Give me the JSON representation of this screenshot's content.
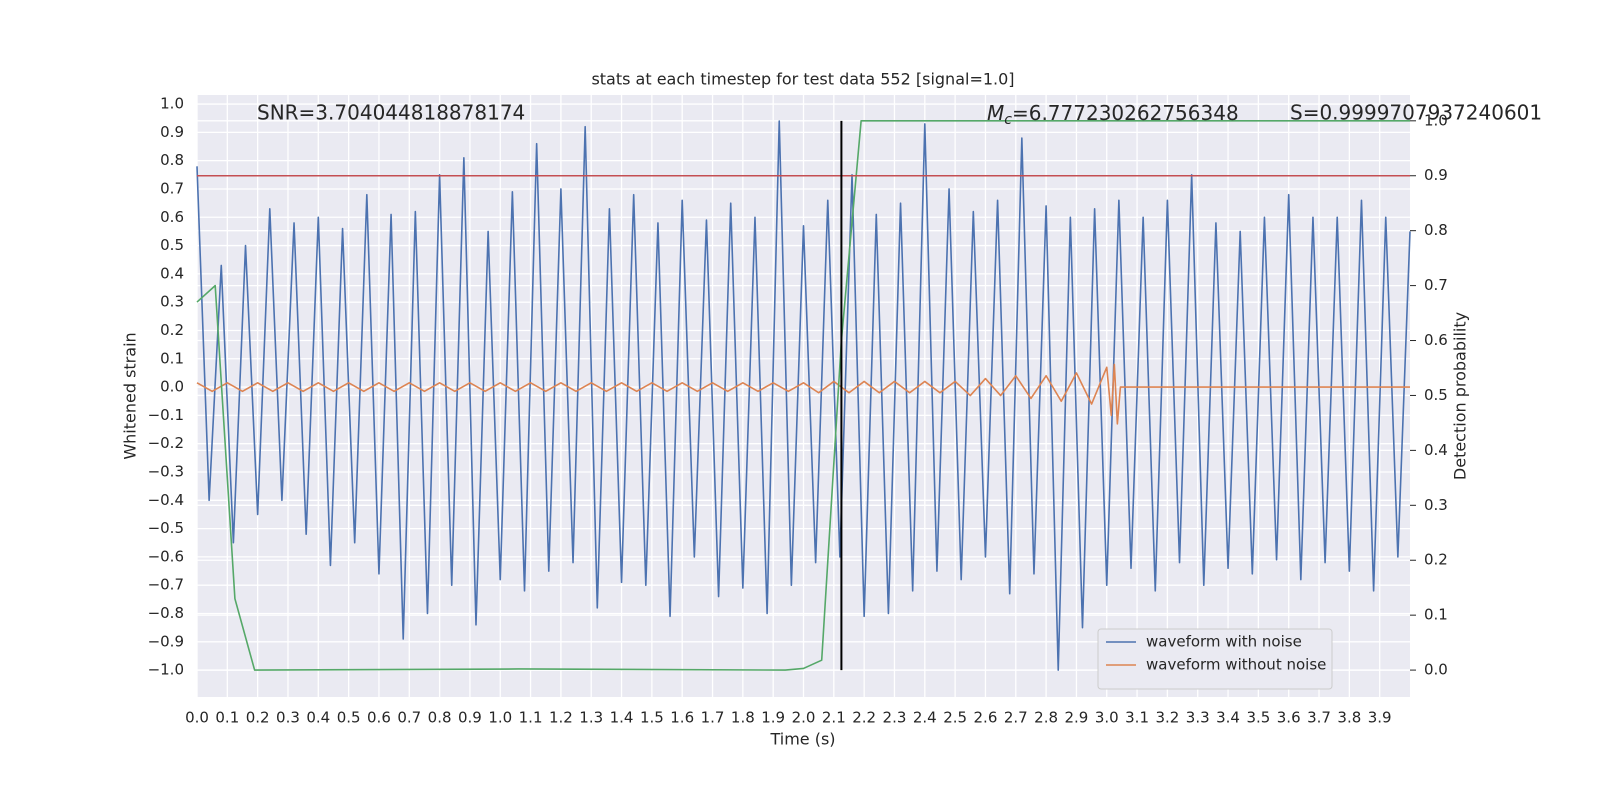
{
  "chart_data": {
    "type": "line",
    "title": "stats at each timestep for test data 552 [signal=1.0]",
    "xlabel": "Time (s)",
    "ylabel": "Whitened strain",
    "y2label": "Detection probability",
    "annotations": {
      "snr": "SNR=3.704044818878174",
      "mc": {
        "symbol": "M",
        "subscript": "c",
        "text": "=6.777230262756348"
      },
      "s": "S=0.9999707937240601"
    },
    "xlim": [
      0,
      4.0
    ],
    "ylim": [
      -1.095,
      1.032
    ],
    "y2lim": [
      -0.049,
      1.047
    ],
    "grid": true,
    "legend": "lower right",
    "xticks": [
      {
        "value": 0,
        "label": "0.0"
      },
      0.1,
      0.2,
      0.3,
      0.4,
      0.5,
      0.6,
      0.7,
      0.8,
      0.9,
      {
        "value": 1,
        "label": "1.0"
      },
      1.1,
      1.2,
      1.3,
      1.4,
      1.5,
      1.6,
      1.7,
      1.8,
      1.9,
      {
        "value": 2,
        "label": "2.0"
      },
      2.1,
      2.2,
      2.3,
      2.4,
      2.5,
      2.6,
      2.7,
      2.8,
      2.9,
      {
        "value": 3,
        "label": "3.0"
      },
      3.1,
      3.2,
      3.3,
      3.4,
      3.5,
      3.6,
      3.7,
      3.8,
      3.9
    ],
    "yticks": [
      {
        "value": 1,
        "label": "1.0"
      },
      0.9,
      0.8,
      0.7,
      0.6,
      0.5,
      0.4,
      0.3,
      0.2,
      0.1,
      {
        "value": 0,
        "label": "0.0"
      },
      {
        "value": -0.1,
        "label": "−0.1"
      },
      {
        "value": -0.2,
        "label": "−0.2"
      },
      {
        "value": -0.3,
        "label": "−0.3"
      },
      {
        "value": -0.4,
        "label": "−0.4"
      },
      {
        "value": -0.5,
        "label": "−0.5"
      },
      {
        "value": -0.6,
        "label": "−0.6"
      },
      {
        "value": -0.7,
        "label": "−0.7"
      },
      {
        "value": -0.8,
        "label": "−0.8"
      },
      {
        "value": -0.9,
        "label": "−0.9"
      },
      {
        "value": -1,
        "label": "−1.0"
      }
    ],
    "y2ticks": [
      {
        "value": 1,
        "label": "1.0"
      },
      0.9,
      0.8,
      0.7,
      0.6,
      0.5,
      0.4,
      0.3,
      0.2,
      0.1,
      {
        "value": 0,
        "label": "0.0"
      }
    ],
    "series": [
      {
        "name": "waveform with noise",
        "color": "#4c72b0",
        "x": [
          0,
          0.04,
          0.08,
          0.12,
          0.16,
          0.2,
          0.24,
          0.28,
          0.32,
          0.36,
          0.4,
          0.44,
          0.48,
          0.52,
          0.56,
          0.6,
          0.64,
          0.68,
          0.72,
          0.76,
          0.8,
          0.84,
          0.88,
          0.92,
          0.96,
          1,
          1.04,
          1.08,
          1.12,
          1.16,
          1.2,
          1.24,
          1.28,
          1.32,
          1.36,
          1.4,
          1.44,
          1.48,
          1.52,
          1.56,
          1.6,
          1.64,
          1.68,
          1.72,
          1.76,
          1.8,
          1.84,
          1.88,
          1.92,
          1.96,
          2,
          2.04,
          2.08,
          2.12,
          2.16,
          2.2,
          2.24,
          2.28,
          2.32,
          2.36,
          2.4,
          2.44,
          2.48,
          2.52,
          2.56,
          2.6,
          2.64,
          2.68,
          2.72,
          2.76,
          2.8,
          2.84,
          2.88,
          2.92,
          2.96,
          3,
          3.04,
          3.08,
          3.12,
          3.16,
          3.2,
          3.24,
          3.28,
          3.32,
          3.36,
          3.4,
          3.44,
          3.48,
          3.52,
          3.56,
          3.6,
          3.64,
          3.68,
          3.72,
          3.76,
          3.8,
          3.84,
          3.88,
          3.92,
          3.96,
          4
        ],
        "values": [
          0.78,
          -0.4,
          0.43,
          -0.55,
          0.5,
          -0.45,
          0.63,
          -0.4,
          0.58,
          -0.52,
          0.6,
          -0.63,
          0.56,
          -0.55,
          0.68,
          -0.66,
          0.61,
          -0.89,
          0.62,
          -0.8,
          0.75,
          -0.7,
          0.81,
          -0.84,
          0.55,
          -0.68,
          0.69,
          -0.72,
          0.86,
          -0.65,
          0.7,
          -0.62,
          0.92,
          -0.78,
          0.63,
          -0.69,
          0.68,
          -0.7,
          0.58,
          -0.81,
          0.66,
          -0.6,
          0.59,
          -0.74,
          0.65,
          -0.71,
          0.6,
          -0.8,
          0.94,
          -0.7,
          0.57,
          -0.62,
          0.66,
          -0.6,
          0.75,
          -0.81,
          0.61,
          -0.8,
          0.65,
          -0.72,
          0.93,
          -0.65,
          0.7,
          -0.68,
          0.62,
          -0.6,
          0.66,
          -0.73,
          0.88,
          -0.66,
          0.64,
          -1.0,
          0.6,
          -0.85,
          0.63,
          -0.7,
          0.66,
          -0.64,
          0.6,
          -0.72,
          0.66,
          -0.62,
          0.75,
          -0.7,
          0.58,
          -0.64,
          0.55,
          -0.66,
          0.6,
          -0.61,
          0.68,
          -0.68,
          0.6,
          -0.62,
          0.6,
          -0.65,
          0.66,
          -0.72,
          0.6,
          -0.6,
          0.55
        ]
      },
      {
        "name": "waveform without noise",
        "color": "#dd8452",
        "x": [
          0,
          0.05,
          0.1,
          0.15,
          0.2,
          0.25,
          0.3,
          0.35,
          0.4,
          0.45,
          0.5,
          0.55,
          0.6,
          0.65,
          0.7,
          0.75,
          0.8,
          0.85,
          0.9,
          0.95,
          1,
          1.05,
          1.1,
          1.15,
          1.2,
          1.25,
          1.3,
          1.35,
          1.4,
          1.45,
          1.5,
          1.55,
          1.6,
          1.65,
          1.7,
          1.75,
          1.8,
          1.85,
          1.9,
          1.95,
          2,
          2.05,
          2.1,
          2.15,
          2.2,
          2.25,
          2.3,
          2.35,
          2.4,
          2.45,
          2.5,
          2.55,
          2.6,
          2.65,
          2.7,
          2.75,
          2.8,
          2.85,
          2.9,
          2.95,
          3,
          3.015,
          3.025,
          3.035,
          3.045,
          4
        ],
        "values": [
          0.015,
          -0.015,
          0.015,
          -0.015,
          0.015,
          -0.015,
          0.015,
          -0.015,
          0.015,
          -0.015,
          0.015,
          -0.015,
          0.015,
          -0.015,
          0.015,
          -0.015,
          0.015,
          -0.015,
          0.015,
          -0.015,
          0.015,
          -0.015,
          0.015,
          -0.015,
          0.015,
          -0.015,
          0.015,
          -0.015,
          0.015,
          -0.015,
          0.015,
          -0.015,
          0.015,
          -0.015,
          0.015,
          -0.015,
          0.015,
          -0.015,
          0.015,
          -0.015,
          0.015,
          -0.02,
          0.02,
          -0.02,
          0.02,
          -0.02,
          0.02,
          -0.02,
          0.02,
          -0.02,
          0.02,
          -0.03,
          0.03,
          -0.03,
          0.04,
          -0.04,
          0.04,
          -0.05,
          0.05,
          -0.06,
          0.07,
          -0.1,
          0.08,
          -0.13,
          0,
          0
        ]
      },
      {
        "color": "#55a868",
        "axis": "y2",
        "x": [
          0,
          0.06,
          0.125,
          0.19,
          1.06,
          1.94,
          2.0,
          2.06,
          2.125,
          2.19,
          4.0
        ],
        "values": [
          0.67,
          0.7,
          0.13,
          0.0,
          0.002,
          0.0,
          0.003,
          0.018,
          0.6,
          1.0,
          1.0
        ]
      }
    ],
    "threshold": {
      "y2": 0.9,
      "color": "#c44e52"
    },
    "vline": {
      "x": 2.125,
      "y2": [
        0,
        1.0
      ],
      "color": "#000000"
    }
  }
}
